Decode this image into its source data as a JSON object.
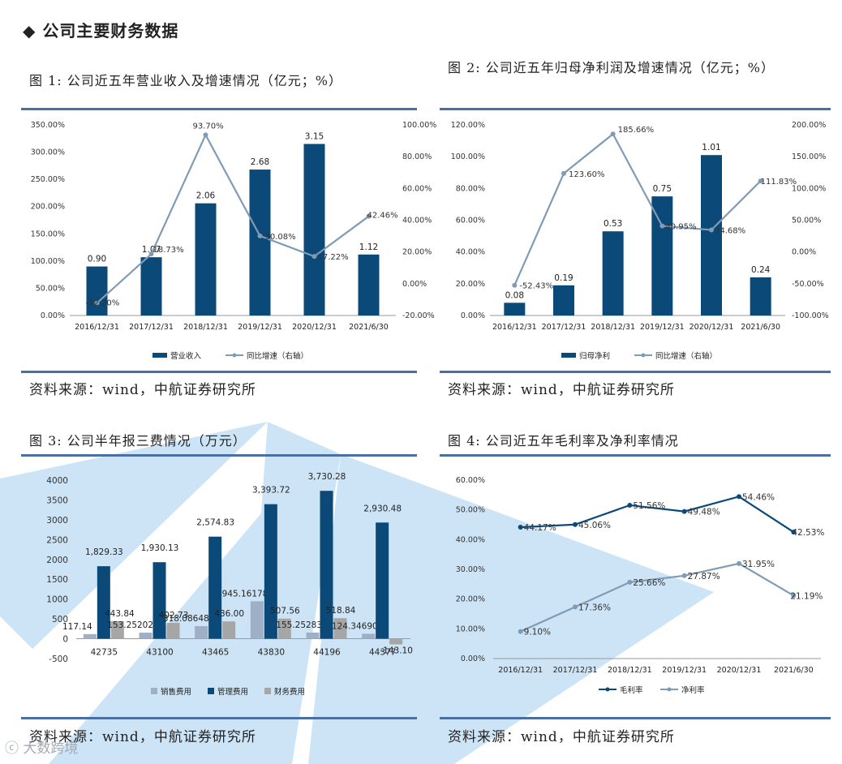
{
  "heading": "◆  公司主要财务数据",
  "source_text": "资料来源：wind，中航证券研究所",
  "watermark": "大数跨境",
  "colors": {
    "bar": "#0b4a78",
    "line": "#7f9bb5",
    "gray": "#a6a6a6",
    "light": "#9fb0c6",
    "rule": "#4a6fa5",
    "wm": "#6fb3e6"
  },
  "figures": [
    {
      "title": "图 1: 公司近五年营业收入及增速情况（亿元；%）"
    },
    {
      "title": "图 2: 公司近五年归母净利润及增速情况（亿元；%）"
    },
    {
      "title": "图 3: 公司半年报三费情况（万元）"
    },
    {
      "title": "图 4: 公司近五年毛利率及净利率情况"
    }
  ],
  "chart_data": [
    {
      "type": "bar",
      "title": "图 1: 公司近五年营业收入及增速情况（亿元；%）",
      "categories": [
        "2016/12/31",
        "2017/12/31",
        "2018/12/31",
        "2019/12/31",
        "2020/12/31",
        "2021/6/30"
      ],
      "series": [
        {
          "name": "营业收入",
          "kind": "bar",
          "values": [
            0.9,
            1.07,
            2.06,
            2.68,
            3.15,
            1.12
          ],
          "labels": [
            "0.90",
            "1.07",
            "2.06",
            "2.68",
            "3.15",
            "1.12"
          ]
        },
        {
          "name": "同比增速（右轴）",
          "kind": "line",
          "axis": "right",
          "values": [
            -12.2,
            18.73,
            93.7,
            30.08,
            17.22,
            42.46
          ],
          "labels": [
            "-12.20%",
            "18.73%",
            "93.70%",
            "30.08%",
            "17.22%",
            "42.46%"
          ]
        }
      ],
      "left_axis": {
        "min": 0,
        "max": 3.5,
        "ticks": [
          "0.00%",
          "50.00%",
          "100.00%",
          "150.00%",
          "200.00%",
          "250.00%",
          "300.00%",
          "350.00%"
        ]
      },
      "right_axis": {
        "min": -20,
        "max": 100,
        "ticks": [
          "-20.00%",
          "0.00%",
          "20.00%",
          "40.00%",
          "60.00%",
          "80.00%",
          "100.00%"
        ]
      },
      "legend": [
        "营业收入",
        "同比增速（右轴）"
      ]
    },
    {
      "type": "bar",
      "title": "图 2: 公司近五年归母净利润及增速情况（亿元；%）",
      "categories": [
        "2016/12/31",
        "2017/12/31",
        "2018/12/31",
        "2019/12/31",
        "2020/12/31",
        "2021/6/30"
      ],
      "series": [
        {
          "name": "归母净利",
          "kind": "bar",
          "values": [
            0.08,
            0.19,
            0.53,
            0.75,
            1.01,
            0.24
          ],
          "labels": [
            "0.08",
            "0.19",
            "0.53",
            "0.75",
            "1.01",
            "0.24"
          ]
        },
        {
          "name": "同比增速（右轴）",
          "kind": "line",
          "axis": "right",
          "values": [
            -52.43,
            123.6,
            185.66,
            40.95,
            34.68,
            111.83
          ],
          "labels": [
            "-52.43%",
            "123.60%",
            "185.66%",
            "40.95%",
            "34.68%",
            "111.83%"
          ]
        }
      ],
      "left_axis": {
        "min": 0,
        "max": 1.2,
        "ticks": [
          "0.00%",
          "20.00%",
          "40.00%",
          "60.00%",
          "80.00%",
          "100.00%",
          "120.00%"
        ]
      },
      "right_axis": {
        "min": -100,
        "max": 200,
        "ticks": [
          "-100.00%",
          "-50.00%",
          "0.00%",
          "50.00%",
          "100.00%",
          "150.00%",
          "200.00%"
        ]
      },
      "legend": [
        "归母净利",
        "同比增速（右轴）"
      ]
    },
    {
      "type": "bar",
      "title": "图 3: 公司半年报三费情况（万元）",
      "categories": [
        "42735",
        "43100",
        "43465",
        "43830",
        "44196",
        "44377"
      ],
      "series": [
        {
          "name": "销售费用",
          "values": [
            117.14,
            153.252027,
            318.086487,
            945.161787,
            155.252839,
            124.346905
          ],
          "labels": [
            "117.14",
            "153.252027",
            "318.086487",
            "945.161787",
            "155.252839",
            "124.346905"
          ]
        },
        {
          "name": "管理费用",
          "values": [
            1829.33,
            1930.13,
            2574.83,
            3393.72,
            3730.28,
            2930.48
          ],
          "labels": [
            "1,829.33",
            "1,930.13",
            "2,574.83",
            "3,393.72",
            "3,730.28",
            "2,930.48"
          ]
        },
        {
          "name": "财务费用",
          "values": [
            443.84,
            402.73,
            436.0,
            507.56,
            518.84,
            -143.1
          ],
          "labels": [
            "443.84",
            "402.73",
            "436.00",
            "507.56",
            "518.84",
            "-143.10"
          ]
        }
      ],
      "y_axis": {
        "min": -500,
        "max": 4000,
        "ticks": [
          "-500",
          "0",
          "500",
          "1000",
          "1500",
          "2000",
          "2500",
          "3000",
          "3500",
          "4000"
        ]
      },
      "legend": [
        "销售费用",
        "管理费用",
        "财务费用"
      ]
    },
    {
      "type": "line",
      "title": "图 4: 公司近五年毛利率及净利率情况",
      "categories": [
        "2016/12/31",
        "2017/12/31",
        "2018/12/31",
        "2019/12/31",
        "2020/12/31",
        "2021/6/30"
      ],
      "series": [
        {
          "name": "毛利率",
          "values": [
            44.17,
            45.06,
            51.56,
            49.48,
            54.46,
            42.53
          ],
          "labels": [
            "44.17%",
            "45.06%",
            "51.56%",
            "49.48%",
            "54.46%",
            "42.53%"
          ]
        },
        {
          "name": "净利率",
          "values": [
            9.1,
            17.36,
            25.66,
            27.87,
            31.95,
            21.19
          ],
          "labels": [
            "9.10%",
            "17.36%",
            "25.66%",
            "27.87%",
            "31.95%",
            "21.19%"
          ]
        }
      ],
      "y_axis": {
        "min": 0,
        "max": 60,
        "ticks": [
          "0.00%",
          "10.00%",
          "20.00%",
          "30.00%",
          "40.00%",
          "50.00%",
          "60.00%"
        ]
      },
      "legend": [
        "毛利率",
        "净利率"
      ]
    }
  ]
}
